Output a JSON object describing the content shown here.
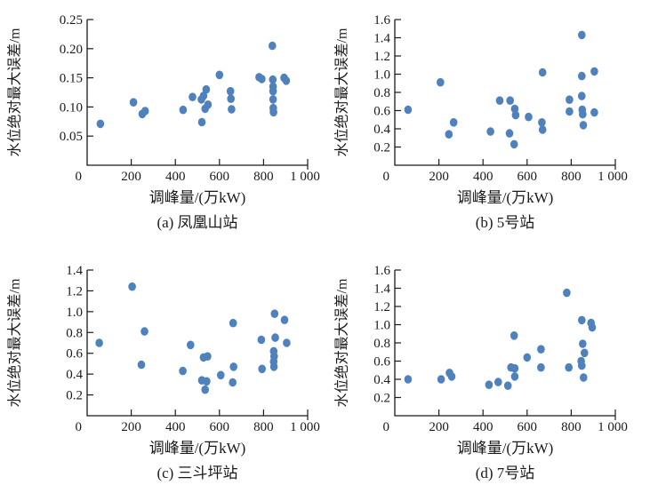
{
  "figure": {
    "marker_color": "#4f81bd",
    "axis_color": "#1a1a1a",
    "background": "#ffffff"
  },
  "chart_data": [
    {
      "id": "a",
      "type": "scatter",
      "caption": "(a) 凤凰山站",
      "xlabel": "调峰量/(万kW)",
      "ylabel": "水位绝对最大误差/m",
      "xlim": [
        0,
        1000
      ],
      "ylim": [
        0,
        0.25
      ],
      "xticks": [
        200,
        400,
        600,
        800,
        1000
      ],
      "xtick_labels": [
        "200",
        "400",
        "600",
        "800",
        "1 000"
      ],
      "yticks": [
        0.05,
        0.1,
        0.15,
        0.2,
        0.25
      ],
      "ytick_labels": [
        "0.05",
        "0.10",
        "0.15",
        "0.20",
        "0.25"
      ],
      "origin_label": "0",
      "grid": false,
      "legend": false,
      "points": [
        [
          60,
          0.071
        ],
        [
          210,
          0.108
        ],
        [
          250,
          0.088
        ],
        [
          263,
          0.093
        ],
        [
          435,
          0.095
        ],
        [
          478,
          0.117
        ],
        [
          518,
          0.113
        ],
        [
          520,
          0.074
        ],
        [
          528,
          0.119
        ],
        [
          535,
          0.097
        ],
        [
          540,
          0.13
        ],
        [
          548,
          0.104
        ],
        [
          600,
          0.155
        ],
        [
          650,
          0.127
        ],
        [
          652,
          0.114
        ],
        [
          655,
          0.096
        ],
        [
          780,
          0.151
        ],
        [
          792,
          0.148
        ],
        [
          840,
          0.205
        ],
        [
          842,
          0.147
        ],
        [
          843,
          0.135
        ],
        [
          843,
          0.127
        ],
        [
          843,
          0.113
        ],
        [
          844,
          0.098
        ],
        [
          845,
          0.091
        ],
        [
          893,
          0.15
        ],
        [
          903,
          0.145
        ]
      ]
    },
    {
      "id": "b",
      "type": "scatter",
      "caption": "(b) 5号站",
      "xlabel": "调峰量/(万kW)",
      "ylabel": "水位绝对最大误差/m",
      "xlim": [
        0,
        1000
      ],
      "ylim": [
        0,
        1.6
      ],
      "xticks": [
        200,
        400,
        600,
        800,
        1000
      ],
      "xtick_labels": [
        "200",
        "400",
        "600",
        "800",
        "1 000"
      ],
      "yticks": [
        0.2,
        0.4,
        0.6,
        0.8,
        1.0,
        1.2,
        1.4,
        1.6
      ],
      "ytick_labels": [
        "0.2",
        "0.4",
        "0.6",
        "0.8",
        "1.0",
        "1.2",
        "1.4",
        "1.6"
      ],
      "origin_label": "0",
      "grid": false,
      "legend": false,
      "points": [
        [
          60,
          0.61
        ],
        [
          207,
          0.91
        ],
        [
          245,
          0.34
        ],
        [
          267,
          0.47
        ],
        [
          434,
          0.37
        ],
        [
          476,
          0.71
        ],
        [
          520,
          0.35
        ],
        [
          523,
          0.71
        ],
        [
          541,
          0.23
        ],
        [
          544,
          0.62
        ],
        [
          548,
          0.55
        ],
        [
          607,
          0.53
        ],
        [
          667,
          0.47
        ],
        [
          670,
          1.02
        ],
        [
          670,
          0.39
        ],
        [
          792,
          0.72
        ],
        [
          792,
          0.59
        ],
        [
          848,
          1.43
        ],
        [
          848,
          0.98
        ],
        [
          848,
          0.76
        ],
        [
          850,
          0.61
        ],
        [
          852,
          0.56
        ],
        [
          855,
          0.44
        ],
        [
          905,
          1.03
        ],
        [
          905,
          0.58
        ]
      ]
    },
    {
      "id": "c",
      "type": "scatter",
      "caption": "(c) 三斗坪站",
      "xlabel": "调峰量/(万kW)",
      "ylabel": "水位绝对最大误差/m",
      "xlim": [
        0,
        1000
      ],
      "ylim": [
        0,
        1.4
      ],
      "xticks": [
        200,
        400,
        600,
        800,
        1000
      ],
      "xtick_labels": [
        "200",
        "400",
        "600",
        "800",
        "1 000"
      ],
      "yticks": [
        0.2,
        0.4,
        0.6,
        0.8,
        1.0,
        1.2,
        1.4
      ],
      "ytick_labels": [
        "0.2",
        "0.4",
        "0.6",
        "0.8",
        "1.0",
        "1.2",
        "1.4"
      ],
      "origin_label": "0",
      "grid": false,
      "legend": false,
      "points": [
        [
          55,
          0.7
        ],
        [
          204,
          1.24
        ],
        [
          246,
          0.49
        ],
        [
          260,
          0.81
        ],
        [
          434,
          0.43
        ],
        [
          469,
          0.68
        ],
        [
          520,
          0.34
        ],
        [
          528,
          0.56
        ],
        [
          535,
          0.25
        ],
        [
          542,
          0.33
        ],
        [
          546,
          0.57
        ],
        [
          606,
          0.39
        ],
        [
          660,
          0.32
        ],
        [
          662,
          0.89
        ],
        [
          664,
          0.47
        ],
        [
          790,
          0.73
        ],
        [
          793,
          0.45
        ],
        [
          846,
          0.62
        ],
        [
          846,
          0.52
        ],
        [
          847,
          0.47
        ],
        [
          848,
          0.57
        ],
        [
          850,
          0.98
        ],
        [
          853,
          0.75
        ],
        [
          895,
          0.92
        ],
        [
          905,
          0.7
        ]
      ]
    },
    {
      "id": "d",
      "type": "scatter",
      "caption": "(d) 7号站",
      "xlabel": "调峰量/(万kW)",
      "ylabel": "水位绝对最大误差/m",
      "xlim": [
        0,
        1000
      ],
      "ylim": [
        0,
        1.6
      ],
      "xticks": [
        200,
        400,
        600,
        800,
        1000
      ],
      "xtick_labels": [
        "200",
        "400",
        "600",
        "800",
        "1 000"
      ],
      "yticks": [
        0.2,
        0.4,
        0.6,
        0.8,
        1.0,
        1.2,
        1.4,
        1.6
      ],
      "ytick_labels": [
        "0.2",
        "0.4",
        "0.6",
        "0.8",
        "1.0",
        "1.2",
        "1.4",
        "1.6"
      ],
      "origin_label": "0",
      "grid": false,
      "legend": false,
      "points": [
        [
          60,
          0.4
        ],
        [
          210,
          0.4
        ],
        [
          248,
          0.47
        ],
        [
          258,
          0.43
        ],
        [
          427,
          0.34
        ],
        [
          469,
          0.37
        ],
        [
          513,
          0.33
        ],
        [
          527,
          0.53
        ],
        [
          541,
          0.88
        ],
        [
          544,
          0.52
        ],
        [
          544,
          0.43
        ],
        [
          600,
          0.64
        ],
        [
          663,
          0.73
        ],
        [
          663,
          0.53
        ],
        [
          780,
          1.35
        ],
        [
          789,
          0.53
        ],
        [
          845,
          0.6
        ],
        [
          848,
          1.05
        ],
        [
          848,
          0.55
        ],
        [
          852,
          0.79
        ],
        [
          856,
          0.42
        ],
        [
          860,
          0.69
        ],
        [
          890,
          1.02
        ],
        [
          895,
          0.97
        ]
      ]
    }
  ]
}
